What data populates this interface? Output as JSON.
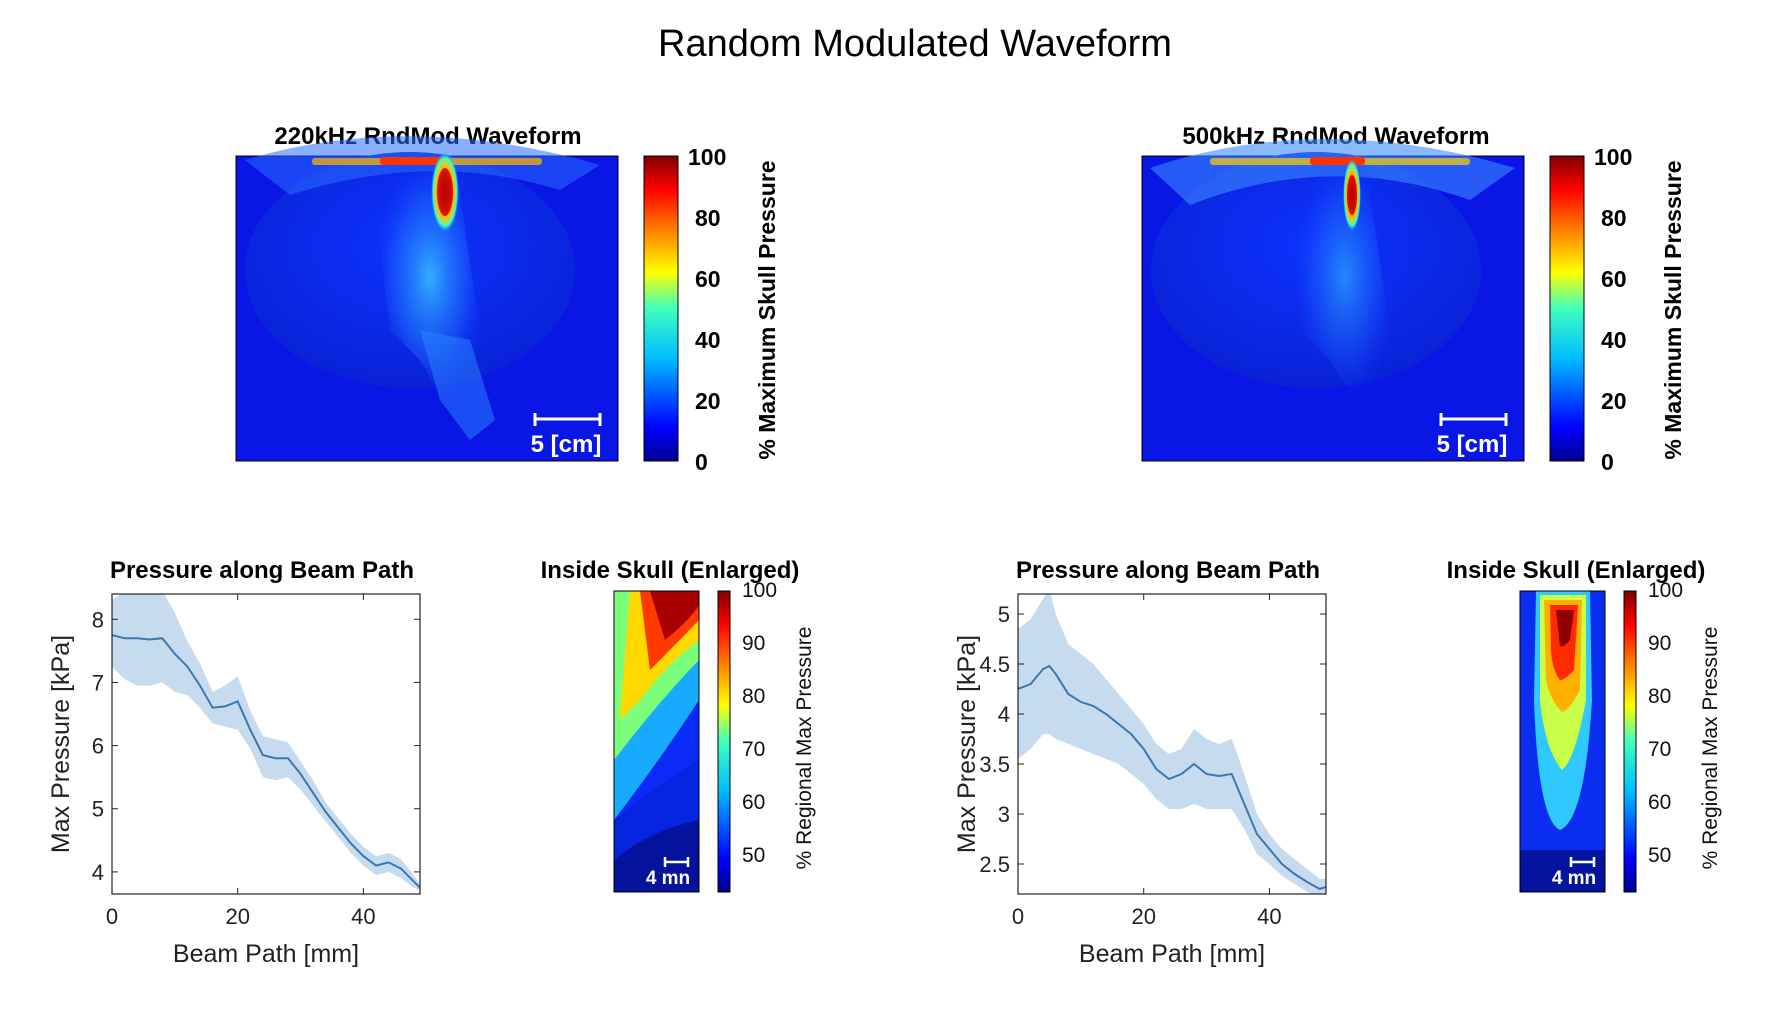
{
  "figure_title": "Random Modulated Waveform",
  "colors": {
    "line": "#3a78b0",
    "band": "#c6dcee",
    "axis": "#222222"
  },
  "colormap": [
    "#00008f",
    "#0000ff",
    "#0070ff",
    "#00dfff",
    "#50ffaf",
    "#bfff40",
    "#ffe000",
    "#ff7000",
    "#ff0000",
    "#800000"
  ],
  "panels": [
    {
      "map": {
        "title": "220kHz RndMod Waveform",
        "scale_label": "5 [cm]",
        "cbar_label": "% Maximum Skull Pressure",
        "cbar_ticks": [
          "0",
          "20",
          "40",
          "60",
          "80",
          "100"
        ]
      },
      "enlarged": {
        "title": "Inside Skull (Enlarged)",
        "scale_label": "4 mn",
        "cbar_label": "% Regional Max Pressure",
        "cbar_ticks": [
          "50",
          "60",
          "70",
          "80",
          "90",
          "100"
        ]
      }
    },
    {
      "map": {
        "title": "500kHz RndMod Waveform",
        "scale_label": "5 [cm]",
        "cbar_label": "% Maximum Skull Pressure",
        "cbar_ticks": [
          "0",
          "20",
          "40",
          "60",
          "80",
          "100"
        ]
      },
      "enlarged": {
        "title": "Inside Skull (Enlarged)",
        "scale_label": "4 mn",
        "cbar_label": "% Regional Max Pressure",
        "cbar_ticks": [
          "50",
          "60",
          "70",
          "80",
          "90",
          "100"
        ]
      }
    }
  ],
  "chart_data": [
    {
      "type": "line",
      "title": "Pressure along Beam Path",
      "xlabel": "Beam Path [mm]",
      "ylabel": "Max Pressure [kPa]",
      "xlim": [
        0,
        49
      ],
      "ylim": [
        3.65,
        8.4
      ],
      "xticks": [
        0,
        20,
        40
      ],
      "yticks": [
        4,
        5,
        6,
        7,
        8
      ],
      "x": [
        0,
        2,
        4,
        6,
        8,
        10,
        12,
        14,
        16,
        18,
        20,
        22,
        24,
        26,
        28,
        30,
        32,
        34,
        36,
        38,
        40,
        42,
        44,
        46,
        48,
        49
      ],
      "y": [
        7.75,
        7.7,
        7.7,
        7.68,
        7.7,
        7.45,
        7.25,
        6.95,
        6.6,
        6.62,
        6.7,
        6.25,
        5.85,
        5.8,
        5.8,
        5.55,
        5.25,
        4.95,
        4.7,
        4.45,
        4.25,
        4.1,
        4.15,
        4.05,
        3.85,
        3.75
      ],
      "upper": [
        8.3,
        8.45,
        8.45,
        8.45,
        8.45,
        8.1,
        7.65,
        7.3,
        6.85,
        6.95,
        7.1,
        6.55,
        6.15,
        6.1,
        6.05,
        5.75,
        5.45,
        5.1,
        4.85,
        4.6,
        4.4,
        4.25,
        4.3,
        4.2,
        3.95,
        3.8
      ],
      "lower": [
        7.25,
        7.05,
        6.95,
        6.95,
        7.0,
        6.85,
        6.8,
        6.6,
        6.35,
        6.3,
        6.25,
        5.95,
        5.5,
        5.45,
        5.5,
        5.3,
        5.05,
        4.8,
        4.55,
        4.3,
        4.1,
        3.95,
        4.0,
        3.9,
        3.75,
        3.7
      ]
    },
    {
      "type": "line",
      "title": "Pressure along Beam Path",
      "xlabel": "Beam Path [mm]",
      "ylabel": "Max Pressure [kPa]",
      "xlim": [
        0,
        49
      ],
      "ylim": [
        2.2,
        5.2
      ],
      "xticks": [
        0,
        20,
        40
      ],
      "yticks": [
        2.5,
        3,
        3.5,
        4,
        4.5,
        5
      ],
      "x": [
        0,
        2,
        4,
        5,
        6,
        8,
        10,
        12,
        14,
        16,
        18,
        20,
        22,
        24,
        26,
        28,
        30,
        32,
        34,
        36,
        38,
        40,
        42,
        44,
        46,
        48,
        49
      ],
      "y": [
        4.25,
        4.3,
        4.45,
        4.48,
        4.4,
        4.2,
        4.12,
        4.08,
        4.0,
        3.9,
        3.8,
        3.65,
        3.45,
        3.35,
        3.4,
        3.5,
        3.4,
        3.38,
        3.4,
        3.1,
        2.8,
        2.65,
        2.5,
        2.4,
        2.32,
        2.25,
        2.27
      ],
      "upper": [
        4.85,
        4.95,
        5.15,
        5.25,
        5.0,
        4.7,
        4.6,
        4.5,
        4.35,
        4.2,
        4.05,
        3.9,
        3.7,
        3.6,
        3.65,
        3.85,
        3.75,
        3.7,
        3.75,
        3.4,
        3.0,
        2.8,
        2.65,
        2.55,
        2.45,
        2.35,
        2.35
      ],
      "lower": [
        3.55,
        3.65,
        3.8,
        3.8,
        3.75,
        3.7,
        3.65,
        3.6,
        3.55,
        3.5,
        3.4,
        3.3,
        3.15,
        3.05,
        3.05,
        3.1,
        3.05,
        3.05,
        3.05,
        2.85,
        2.6,
        2.5,
        2.38,
        2.3,
        2.22,
        2.18,
        2.2
      ]
    }
  ]
}
